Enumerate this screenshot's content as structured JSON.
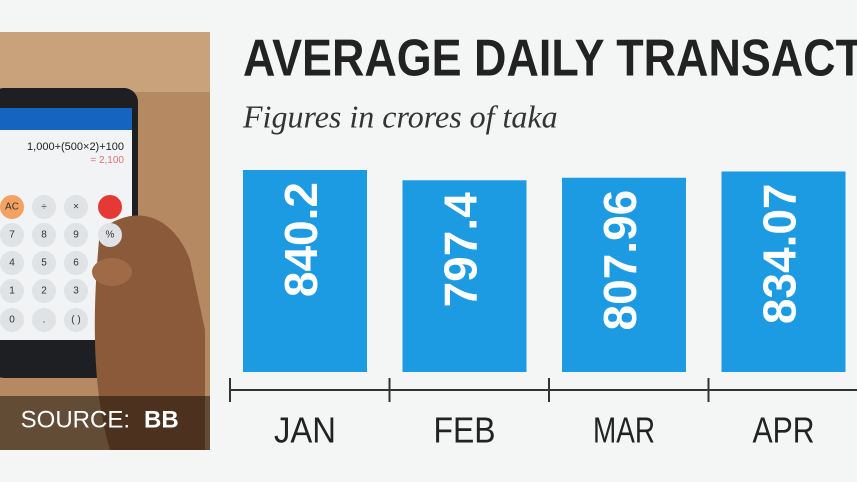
{
  "chart_data": {
    "type": "bar",
    "title": "AVERAGE DAILY TRANSACT",
    "subtitle": "Figures in crores of taka",
    "categories": [
      "JAN",
      "FEB",
      "MAR",
      "APR"
    ],
    "values": [
      840.2,
      797.4,
      807.96,
      834.07
    ],
    "color": "#1d9be2",
    "source_label": "SOURCE:",
    "source": "BB"
  },
  "photo": {
    "expression": "1,000+(500×2)+100",
    "result": "= 2,100",
    "keys": [
      "AC",
      "÷",
      "×",
      "7",
      "8",
      "9",
      "%",
      "4",
      "5",
      "6",
      "1",
      "2",
      "3",
      "0",
      ".",
      "( )"
    ]
  }
}
